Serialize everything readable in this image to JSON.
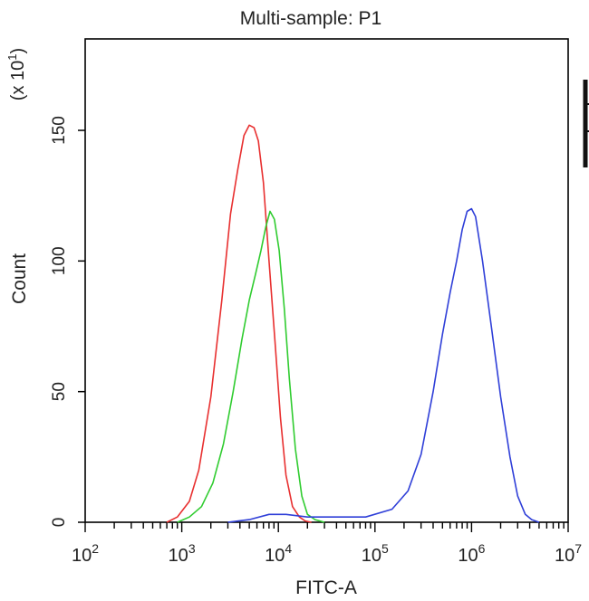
{
  "chart_data": {
    "type": "line",
    "title": "Multi-sample: P1",
    "xlabel": "FITC-A",
    "ylabel": "Count",
    "y_multiplier_label": {
      "base": "(x 10",
      "exp": "1",
      "close": ")"
    },
    "x_scale": "log",
    "xlim": [
      100,
      10000000
    ],
    "ylim": [
      0,
      185
    ],
    "x_ticks": [
      {
        "base": "10",
        "exp": "2",
        "value": 100
      },
      {
        "base": "10",
        "exp": "3",
        "value": 1000
      },
      {
        "base": "10",
        "exp": "4",
        "value": 10000
      },
      {
        "base": "10",
        "exp": "5",
        "value": 100000
      },
      {
        "base": "10",
        "exp": "6",
        "value": 1000000
      },
      {
        "base": "10",
        "exp": "7",
        "value": 10000000
      }
    ],
    "y_ticks": [
      {
        "label": "0",
        "value": 0
      },
      {
        "label": "50",
        "value": 50
      },
      {
        "label": "100",
        "value": 100
      },
      {
        "label": "150",
        "value": 150
      }
    ],
    "grid": false,
    "legend": "none",
    "series": [
      {
        "color": "#e83030",
        "x": [
          700,
          900,
          1200,
          1500,
          2000,
          2600,
          3200,
          3800,
          4400,
          5000,
          5600,
          6200,
          7000,
          8000,
          9200,
          10500,
          12000,
          14000,
          16500,
          19000,
          22000
        ],
        "y": [
          0,
          2,
          8,
          20,
          48,
          85,
          118,
          135,
          148,
          152,
          151,
          146,
          130,
          100,
          70,
          40,
          18,
          6,
          2,
          0.5,
          0
        ]
      },
      {
        "color": "#30cc30",
        "x": [
          900,
          1200,
          1600,
          2100,
          2700,
          3400,
          4200,
          5000,
          5800,
          6600,
          7400,
          8200,
          9100,
          10200,
          11500,
          13000,
          15000,
          17500,
          20000,
          24000,
          30000
        ],
        "y": [
          0,
          2,
          6,
          15,
          30,
          50,
          70,
          85,
          95,
          104,
          113,
          119,
          116,
          104,
          82,
          55,
          28,
          10,
          3,
          1,
          0
        ]
      },
      {
        "color": "#2f3fd8",
        "x": [
          3000,
          5000,
          8000,
          12000,
          20000,
          40000,
          80000,
          150000,
          220000,
          300000,
          400000,
          500000,
          600000,
          700000,
          800000,
          900000,
          1000000,
          1100000,
          1300000,
          1600000,
          2000000,
          2500000,
          3000000,
          3600000,
          4200000,
          5000000
        ],
        "y": [
          0,
          1,
          3,
          3,
          2,
          2,
          2,
          5,
          12,
          26,
          50,
          72,
          88,
          100,
          112,
          119,
          120,
          117,
          100,
          75,
          48,
          25,
          10,
          3,
          1,
          0
        ]
      }
    ]
  }
}
